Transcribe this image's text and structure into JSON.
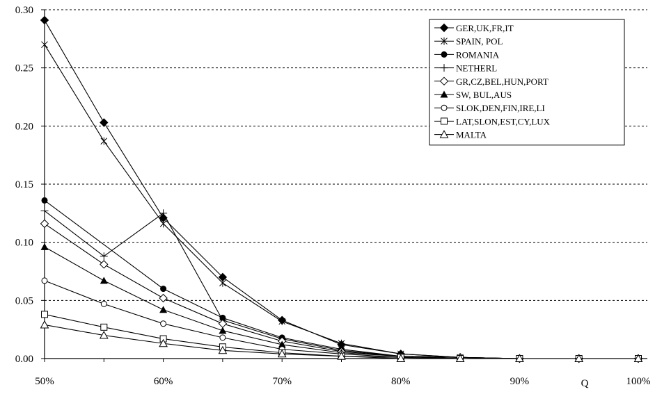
{
  "chart_data": {
    "type": "line",
    "title": "",
    "xlabel": "Q",
    "ylabel": "",
    "x": [
      0.5,
      0.55,
      0.6,
      0.65,
      0.7,
      0.75,
      0.8,
      0.85,
      0.9,
      0.95,
      1.0
    ],
    "xlim": [
      0.5,
      1.0
    ],
    "ylim": [
      0,
      0.3
    ],
    "x_ticks": [
      "50%",
      "60%",
      "70%",
      "80%",
      "90%",
      "100%"
    ],
    "y_ticks": [
      "0.00",
      "0.05",
      "0.10",
      "0.15",
      "0.20",
      "0.25",
      "0.30"
    ],
    "grid": "horizontal dashed",
    "legend_position": "top-right",
    "series": [
      {
        "name": "GER,UK,FR,IT",
        "marker": "diamond-filled",
        "values": [
          0.291,
          0.203,
          0.121,
          0.07,
          0.033,
          0.012,
          0.004,
          0.001,
          0.0,
          0.0,
          0.0
        ]
      },
      {
        "name": "SPAIN, POL",
        "marker": "asterisk",
        "values": [
          0.27,
          0.187,
          0.116,
          0.065,
          0.032,
          0.013,
          0.004,
          0.001,
          0.0,
          0.0,
          0.0
        ]
      },
      {
        "name": "ROMANIA",
        "marker": "circle-filled",
        "values": [
          0.136,
          null,
          0.06,
          0.035,
          0.018,
          0.008,
          0.002,
          0.001,
          0.0,
          0.0,
          0.0
        ]
      },
      {
        "name": "NETHERL",
        "marker": "plus",
        "values": [
          0.127,
          0.088,
          0.125,
          0.033,
          0.017,
          0.007,
          0.002,
          0.001,
          0.0,
          0.0,
          0.0
        ]
      },
      {
        "name": "GR,CZ,BEL,HUN,PORT",
        "marker": "diamond-open",
        "values": [
          0.116,
          0.081,
          0.052,
          0.03,
          0.015,
          0.006,
          0.002,
          0.001,
          0.0,
          0.0,
          0.0
        ]
      },
      {
        "name": "SW, BUL,AUS",
        "marker": "triangle-filled",
        "values": [
          0.096,
          0.067,
          0.042,
          0.024,
          0.012,
          0.005,
          0.002,
          0.0,
          0.0,
          0.0,
          0.0
        ]
      },
      {
        "name": "SLOK,DEN,FIN,IRE,LI",
        "marker": "circle-open",
        "values": [
          0.067,
          0.047,
          0.03,
          0.018,
          0.008,
          0.004,
          0.001,
          0.0,
          0.0,
          0.0,
          0.0
        ]
      },
      {
        "name": "LAT,SLON,EST,CY,LUX",
        "marker": "square-open",
        "values": [
          0.038,
          0.027,
          0.017,
          0.01,
          0.005,
          0.002,
          0.001,
          0.0,
          0.0,
          0.0,
          0.0
        ]
      },
      {
        "name": "MALTA",
        "marker": "triangle-open",
        "values": [
          0.029,
          0.02,
          0.013,
          0.007,
          0.004,
          0.002,
          0.0,
          0.0,
          0.0,
          0.0,
          0.0
        ]
      }
    ]
  }
}
